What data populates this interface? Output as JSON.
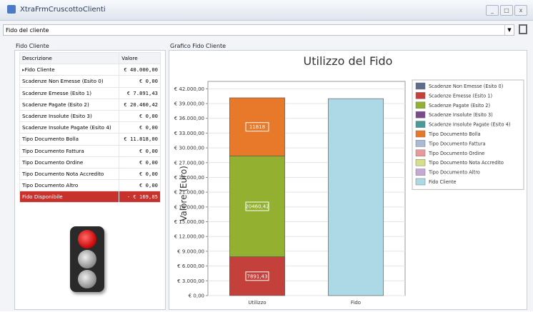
{
  "window": {
    "title": "XtraFrmCruscottoClienti"
  },
  "combo": {
    "value": "Fido del cliente"
  },
  "left_panel": {
    "title": "Fido Cliente",
    "table": {
      "columns": [
        "Descrizione",
        "Valore"
      ],
      "rows": [
        [
          "Fido Cliente",
          "€ 40.000,00"
        ],
        [
          "Scadenze Non Emesse (Esito 0)",
          "€ 0,00"
        ],
        [
          "Scadenze Emesse (Esito 1)",
          "€ 7.891,43"
        ],
        [
          "Scadenze Pagate (Esito 2)",
          "€ 20.460,42"
        ],
        [
          "Scadenze Insolute (Esito 3)",
          "€ 0,00"
        ],
        [
          "Scadenze Insolute Pagate (Esito 4)",
          "€ 0,00"
        ],
        [
          "Tipo Documento Bolla",
          "€ 11.818,00"
        ],
        [
          "Tipo Documento Fattura",
          "€ 0,00"
        ],
        [
          "Tipo Documento Ordine",
          "€ 0,00"
        ],
        [
          "Tipo Documento Nota Accredito",
          "€ 0,00"
        ],
        [
          "Tipo Documento Altro",
          "€ 0,00"
        ],
        [
          "Fido Disponibile",
          "- € 169,85"
        ]
      ]
    }
  },
  "chart_panel": {
    "title": "Grafico Fido Cliente"
  },
  "chart_data": {
    "type": "stacked_bar",
    "title": "Utilizzo del Fido",
    "y_label": "Valore (Euro)",
    "categories": [
      "Utilizzo",
      "Fido"
    ],
    "series": [
      {
        "name": "Scadenze Non Emesse (Esito 0)",
        "color": "#5d6d8c",
        "values": [
          0,
          0
        ]
      },
      {
        "name": "Scadenze Emesse (Esito 1)",
        "color": "#c4403a",
        "values": [
          7891.43,
          0
        ],
        "value_labels": [
          "7891,43",
          null
        ]
      },
      {
        "name": "Scadenze Pagate (Esito 2)",
        "color": "#94b030",
        "values": [
          20460.42,
          0
        ],
        "value_labels": [
          "20460,42",
          null
        ]
      },
      {
        "name": "Scadenze Insolute (Esito 3)",
        "color": "#7b4a8a",
        "values": [
          0,
          0
        ]
      },
      {
        "name": "Scadenze Insolute Pagate (Esito 4)",
        "color": "#4a9a9a",
        "values": [
          0,
          0
        ]
      },
      {
        "name": "Tipo Documento Bolla",
        "color": "#e8782a",
        "values": [
          11818,
          0
        ],
        "value_labels": [
          "11818",
          null
        ]
      },
      {
        "name": "Tipo Documento Fattura",
        "color": "#a9b9d6",
        "values": [
          0,
          0
        ]
      },
      {
        "name": "Tipo Documento Ordine",
        "color": "#e89a9a",
        "values": [
          0,
          0
        ]
      },
      {
        "name": "Tipo Documento Nota Accredito",
        "color": "#d6e08a",
        "values": [
          0,
          0
        ]
      },
      {
        "name": "Tipo Documento Altro",
        "color": "#c5a8d4",
        "values": [
          0,
          0
        ]
      },
      {
        "name": "Fido Cliente",
        "color": "#add8e6",
        "values": [
          0,
          40000
        ]
      }
    ],
    "ylim": [
      0,
      43500
    ],
    "yticks": [
      {
        "value": 0,
        "label": "€ 0,00"
      },
      {
        "value": 3000,
        "label": "€ 3.000,00"
      },
      {
        "value": 6000,
        "label": "€ 6.000,00"
      },
      {
        "value": 9000,
        "label": "€ 9.000,00"
      },
      {
        "value": 12000,
        "label": "€ 12.000,00"
      },
      {
        "value": 15000,
        "label": "€ 15.000,00"
      },
      {
        "value": 18000,
        "label": "€ 18.000,00"
      },
      {
        "value": 21000,
        "label": "€ 21.000,00"
      },
      {
        "value": 24000,
        "label": "€ 24.000,00"
      },
      {
        "value": 27000,
        "label": "€ 27.000,00"
      },
      {
        "value": 30000,
        "label": "€ 30.000,00"
      },
      {
        "value": 33000,
        "label": "€ 33.000,00"
      },
      {
        "value": 36000,
        "label": "€ 36.000,00"
      },
      {
        "value": 39000,
        "label": "€ 39.000,00"
      },
      {
        "value": 42000,
        "label": "€ 42.000,00"
      }
    ],
    "grid": true,
    "legend": "right"
  }
}
